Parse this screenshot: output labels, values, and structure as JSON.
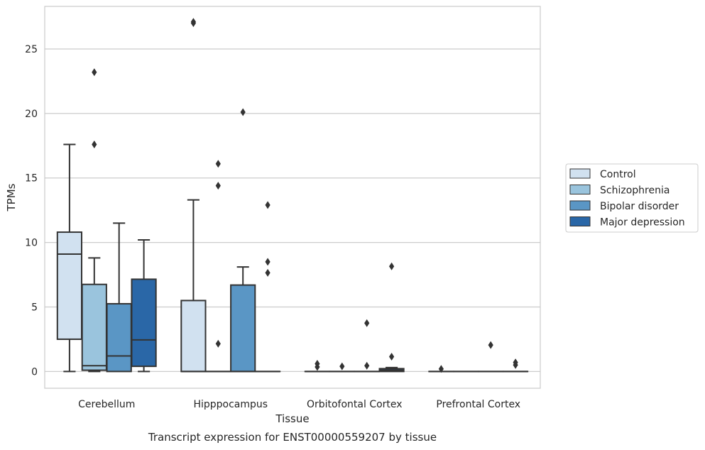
{
  "chart_data": {
    "type": "box",
    "caption": "Transcript expression for ENST00000559207 by tissue",
    "xlabel": "Tissue",
    "ylabel": "TPMs",
    "ylim": [
      -1.3,
      28.3
    ],
    "yticks": [
      0,
      5,
      10,
      15,
      20,
      25
    ],
    "grid": "horizontal",
    "legend_position": "right",
    "categories": [
      "Cerebellum",
      "Hipppocampus",
      "Orbitofontal Cortex",
      "Prefrontal Cortex"
    ],
    "series": [
      {
        "name": "Control",
        "color": "#d1e1f0",
        "boxes": [
          {
            "q1": 2.5,
            "median": 9.1,
            "q3": 10.8,
            "whisker_low": 0.0,
            "whisker_high": 17.6,
            "outliers": []
          },
          {
            "q1": 0.0,
            "median": 0.0,
            "q3": 5.5,
            "whisker_low": 0.0,
            "whisker_high": 13.3,
            "outliers": [
              27.0,
              27.1
            ]
          },
          {
            "q1": 0.0,
            "median": 0.0,
            "q3": 0.0,
            "whisker_low": 0.0,
            "whisker_high": 0.0,
            "outliers": [
              0.35,
              0.6
            ]
          },
          {
            "q1": 0.0,
            "median": 0.0,
            "q3": 0.0,
            "whisker_low": 0.0,
            "whisker_high": 0.0,
            "outliers": [
              0.2
            ]
          }
        ]
      },
      {
        "name": "Schizophrenia",
        "color": "#9ac4dd",
        "boxes": [
          {
            "q1": 0.1,
            "median": 0.45,
            "q3": 6.75,
            "whisker_low": 0.0,
            "whisker_high": 8.8,
            "outliers": [
              17.6,
              23.2
            ]
          },
          {
            "q1": 0.0,
            "median": 0.0,
            "q3": 0.0,
            "whisker_low": 0.0,
            "whisker_high": 0.0,
            "outliers": [
              2.15,
              14.4,
              16.1
            ]
          },
          {
            "q1": 0.0,
            "median": 0.0,
            "q3": 0.0,
            "whisker_low": 0.0,
            "whisker_high": 0.0,
            "outliers": [
              0.4
            ]
          },
          {
            "q1": 0.0,
            "median": 0.0,
            "q3": 0.0,
            "whisker_low": 0.0,
            "whisker_high": 0.0,
            "outliers": []
          }
        ]
      },
      {
        "name": "Bipolar disorder",
        "color": "#5a96c5",
        "boxes": [
          {
            "q1": 0.0,
            "median": 1.2,
            "q3": 5.25,
            "whisker_low": 0.0,
            "whisker_high": 11.5,
            "outliers": []
          },
          {
            "q1": 0.0,
            "median": 0.0,
            "q3": 6.7,
            "whisker_low": 0.0,
            "whisker_high": 8.1,
            "outliers": [
              20.1
            ]
          },
          {
            "q1": 0.0,
            "median": 0.0,
            "q3": 0.0,
            "whisker_low": 0.0,
            "whisker_high": 0.0,
            "outliers": [
              0.45,
              3.75
            ]
          },
          {
            "q1": 0.0,
            "median": 0.0,
            "q3": 0.0,
            "whisker_low": 0.0,
            "whisker_high": 0.0,
            "outliers": [
              2.05
            ]
          }
        ]
      },
      {
        "name": "Major depression",
        "color": "#2a67a7",
        "boxes": [
          {
            "q1": 0.4,
            "median": 2.45,
            "q3": 7.15,
            "whisker_low": 0.0,
            "whisker_high": 10.2,
            "outliers": []
          },
          {
            "q1": 0.0,
            "median": 0.0,
            "q3": 0.0,
            "whisker_low": 0.0,
            "whisker_high": 0.0,
            "outliers": [
              7.65,
              8.5,
              12.9
            ]
          },
          {
            "q1": 0.0,
            "median": 0.1,
            "q3": 0.22,
            "whisker_low": 0.0,
            "whisker_high": 0.3,
            "outliers": [
              1.15,
              8.15
            ]
          },
          {
            "q1": 0.0,
            "median": 0.0,
            "q3": 0.0,
            "whisker_low": 0.0,
            "whisker_high": 0.0,
            "outliers": [
              0.5,
              0.7
            ]
          }
        ]
      }
    ]
  }
}
